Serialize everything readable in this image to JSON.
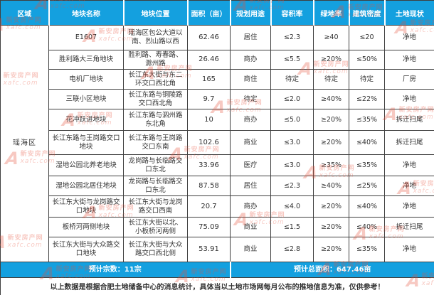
{
  "table": {
    "headers": [
      {
        "key": "region",
        "label": "区域"
      },
      {
        "key": "name",
        "label": "地块名称"
      },
      {
        "key": "location",
        "label": "地块位置"
      },
      {
        "key": "area",
        "label": "面积（亩）"
      },
      {
        "key": "use",
        "label": "规划用途"
      },
      {
        "key": "far",
        "label": "容积率"
      },
      {
        "key": "green",
        "label": "绿地率"
      },
      {
        "key": "density",
        "label": "建筑密度"
      },
      {
        "key": "status",
        "label": "土地现状"
      }
    ],
    "region": "瑶海区",
    "rows": [
      {
        "name": "E1607",
        "location": "瑶海区包公大道以南、烈山路以西",
        "area": "62.46",
        "use": "居住",
        "far": "≤2.3",
        "green": "≥40",
        "density": "≤20",
        "status": "净地"
      },
      {
        "name": "胜利路大三角地块",
        "location": "胜利路、寿春路、滁州路",
        "area": "26.46",
        "use": "商办",
        "far": "≤5.5",
        "green": "≥20%",
        "density": "≤50%",
        "status": "净地"
      },
      {
        "name": "电机厂地块",
        "location": "长江东大街与东二环交口西北角",
        "area": "165",
        "use": "商住",
        "far": "待定",
        "green": "待定",
        "density": "待定",
        "status": "厂房"
      },
      {
        "name": "三联小区地块",
        "location": "长江东路与铜陵路交口西北角",
        "area": "9.7",
        "use": "待定",
        "far": "≤2.0",
        "green": "≥40%",
        "density": "≤22%",
        "status": "净地"
      },
      {
        "name": "花冲跃进地块",
        "location": "长江东路与泗州路东北角",
        "area": "10",
        "use": "商办",
        "far": "≤5.0",
        "green": "≥20%",
        "density": "≤35%",
        "status": "拆迁扫尾"
      },
      {
        "name": "长江东路与王岗路交口地块",
        "location": "长江东路与王岗路交口东南",
        "area": "102.6",
        "use": "商业",
        "far": "≤3.0",
        "green": "≥20%",
        "density": "≤40%",
        "status": "拆迁扫尾"
      },
      {
        "name": "湿地公园北养老地块",
        "location": "龙岗路与长临路交口东北",
        "area": "33.96",
        "use": "医疗",
        "far": "≤3.0",
        "green": "≥35%",
        "density": "≤35%",
        "status": "净地"
      },
      {
        "name": "湿地公园北居住地块",
        "location": "龙岗路与长临路交口东北",
        "area": "87.58",
        "use": "居住",
        "far": "≤2.3",
        "green": "≥40%",
        "density": "≤25%",
        "status": "净地"
      },
      {
        "name": "长江东大街与龙岗路交口地块",
        "location": "长江东大街与龙岗路交口西南",
        "area": "20.7",
        "use": "商办",
        "far": "≤4.0",
        "green": "≥20%",
        "density": "≤40%",
        "status": "净地"
      },
      {
        "name": "板桥河两侧地块",
        "location": "长江东大街以北、小板桥河两侧",
        "area": "75.09",
        "use": "商业",
        "far": "≤1.5",
        "green": "≥20%",
        "density": "≤40%",
        "status": "拆迁扫尾"
      },
      {
        "name": "长江东大街与大众路交口地块",
        "location": "长江东大街与大众路交口西北侧",
        "area": "53.91",
        "use": "商业",
        "far": "≤2.8",
        "green": "≥20%",
        "density": "≤35%",
        "status": "净地"
      }
    ],
    "summary": {
      "parcels_label": "预计宗数：11宗",
      "total_area_label": "预计总面积：647.46亩"
    },
    "note": "以上数据是根据合肥土地储备中心的消息统计，具体当以土地市场网每月公布的推地信息为准，仅供参考！"
  },
  "watermark": {
    "logo": "A",
    "site_name": "新安房产网",
    "site_url": "xafc.com"
  },
  "colors": {
    "header_blue": "#14a0df",
    "border": "#3f3f3f",
    "watermark_red": "#e8503a"
  }
}
